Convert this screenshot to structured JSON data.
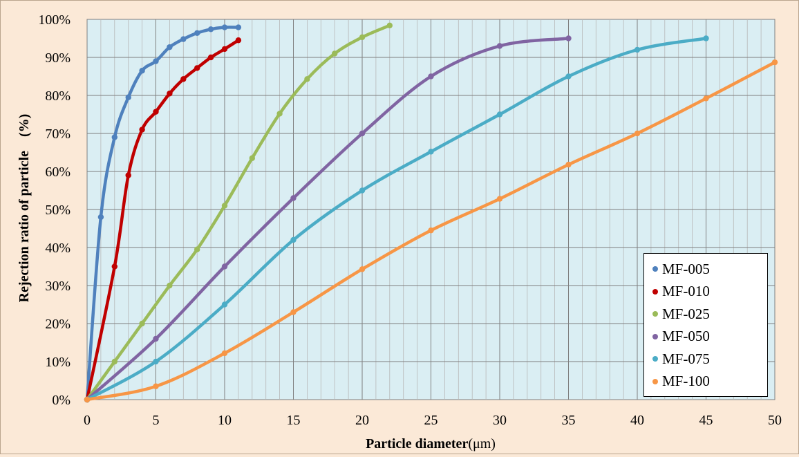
{
  "chart_data": {
    "type": "line",
    "title": "",
    "xlabel": "Particle diameter",
    "xlabel_unit": "(μm)",
    "ylabel": "Rejection ratio of particle　(%)",
    "xlim": [
      0,
      50
    ],
    "ylim": [
      0,
      100
    ],
    "x_ticks": [
      "0",
      "5",
      "10",
      "15",
      "20",
      "25",
      "30",
      "35",
      "40",
      "45",
      "50"
    ],
    "y_ticks": [
      "0%",
      "10%",
      "20%",
      "30%",
      "40%",
      "50%",
      "60%",
      "70%",
      "80%",
      "90%",
      "100%"
    ],
    "grid": true,
    "legend_position": "bottom-right",
    "series": [
      {
        "name": "MF-005",
        "color": "#4f81bd",
        "x": [
          0,
          1,
          2,
          3,
          4,
          5,
          6,
          7,
          8,
          9,
          10,
          11
        ],
        "y": [
          0,
          48,
          69,
          79.5,
          86.5,
          89,
          92.7,
          94.8,
          96.4,
          97.4,
          97.9,
          97.9
        ]
      },
      {
        "name": "MF-010",
        "color": "#c00000",
        "x": [
          0,
          2,
          3,
          4,
          5,
          6,
          7,
          8,
          9,
          10,
          11
        ],
        "y": [
          0,
          35,
          59,
          71,
          75.7,
          80.5,
          84.3,
          87.2,
          90,
          92.2,
          94.5
        ]
      },
      {
        "name": "MF-025",
        "color": "#9bbb59",
        "x": [
          0,
          2,
          4,
          6,
          8,
          10,
          12,
          14,
          16,
          18,
          20,
          22
        ],
        "y": [
          0,
          10,
          20,
          30,
          39.5,
          51,
          63.5,
          75.2,
          84.3,
          91,
          95.3,
          98.4
        ]
      },
      {
        "name": "MF-050",
        "color": "#8064a2",
        "x": [
          0,
          5,
          10,
          15,
          20,
          25,
          30,
          35
        ],
        "y": [
          0,
          16,
          35,
          53,
          70,
          85,
          93,
          95
        ]
      },
      {
        "name": "MF-075",
        "color": "#4bacc6",
        "x": [
          0,
          5,
          10,
          15,
          20,
          25,
          30,
          35,
          40,
          45
        ],
        "y": [
          0,
          10,
          25,
          42,
          55,
          65.2,
          75,
          85,
          92,
          95
        ]
      },
      {
        "name": "MF-100",
        "color": "#f79646",
        "x": [
          0,
          5,
          10,
          15,
          20,
          25,
          30,
          35,
          40,
          45,
          50
        ],
        "y": [
          0,
          3.5,
          12.2,
          23,
          34.3,
          44.5,
          52.8,
          61.8,
          70,
          79.2,
          88.7
        ]
      }
    ]
  }
}
